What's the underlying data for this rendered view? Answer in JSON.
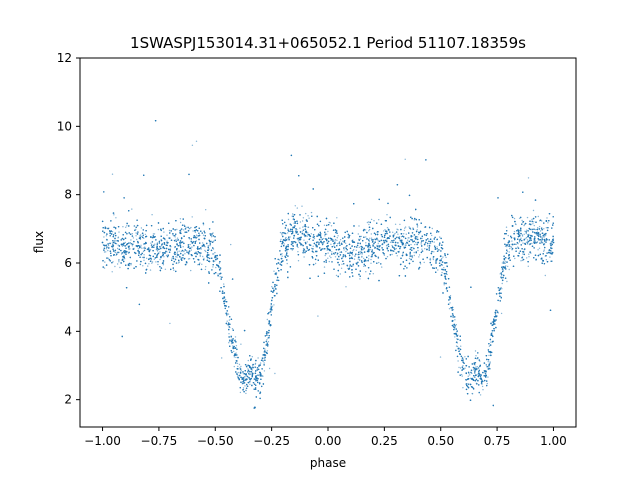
{
  "chart_data": {
    "type": "scatter",
    "title": "1SWASPJ153014.31+065052.1 Period 51107.18359s",
    "xlabel": "phase",
    "ylabel": "flux",
    "xlim": [
      -1.1,
      1.1
    ],
    "ylim": [
      1.2,
      12.0
    ],
    "x_ticks": [
      -1.0,
      -0.75,
      -0.5,
      -0.25,
      0.0,
      0.25,
      0.5,
      0.75,
      1.0
    ],
    "x_tick_labels": [
      "−1.00",
      "−0.75",
      "−0.50",
      "−0.25",
      "0.00",
      "0.25",
      "0.50",
      "0.75",
      "1.00"
    ],
    "y_ticks": [
      2,
      4,
      6,
      8,
      10,
      12
    ],
    "y_tick_labels": [
      "2",
      "4",
      "6",
      "8",
      "10",
      "12"
    ],
    "grid": false,
    "series": [
      {
        "color": "#1f77b4",
        "description_points": "dense band of points around flux 6.5 spanning phase -1 to 1, with two eclipse dips reaching flux ~2.5 near phase -0.33 and 0.67",
        "x": [
          -1.0,
          -0.95,
          -0.9,
          -0.85,
          -0.8,
          -0.75,
          -0.7,
          -0.65,
          -0.6,
          -0.55,
          -0.5,
          -0.48,
          -0.46,
          -0.44,
          -0.42,
          -0.4,
          -0.38,
          -0.36,
          -0.34,
          -0.32,
          -0.3,
          -0.28,
          -0.26,
          -0.24,
          -0.22,
          -0.2,
          -0.15,
          -0.1,
          -0.05,
          0.0,
          0.05,
          0.1,
          0.15,
          0.2,
          0.25,
          0.3,
          0.35,
          0.4,
          0.45,
          0.5,
          0.52,
          0.54,
          0.56,
          0.58,
          0.6,
          0.62,
          0.64,
          0.66,
          0.68,
          0.7,
          0.72,
          0.74,
          0.76,
          0.78,
          0.8,
          0.85,
          0.9,
          0.95,
          1.0
        ],
        "y": [
          6.6,
          6.6,
          6.5,
          6.5,
          6.4,
          6.4,
          6.5,
          6.6,
          6.6,
          6.5,
          6.2,
          5.8,
          5.0,
          4.2,
          3.5,
          2.9,
          2.6,
          2.6,
          2.9,
          2.6,
          2.7,
          3.4,
          4.3,
          5.2,
          6.0,
          6.6,
          6.8,
          6.8,
          6.6,
          6.5,
          6.4,
          6.3,
          6.4,
          6.5,
          6.6,
          6.6,
          6.6,
          6.6,
          6.5,
          6.2,
          5.8,
          5.0,
          4.2,
          3.5,
          2.9,
          2.6,
          2.6,
          2.9,
          2.6,
          2.7,
          3.4,
          4.3,
          5.2,
          6.0,
          6.6,
          6.8,
          6.8,
          6.7,
          6.6
        ]
      }
    ]
  }
}
